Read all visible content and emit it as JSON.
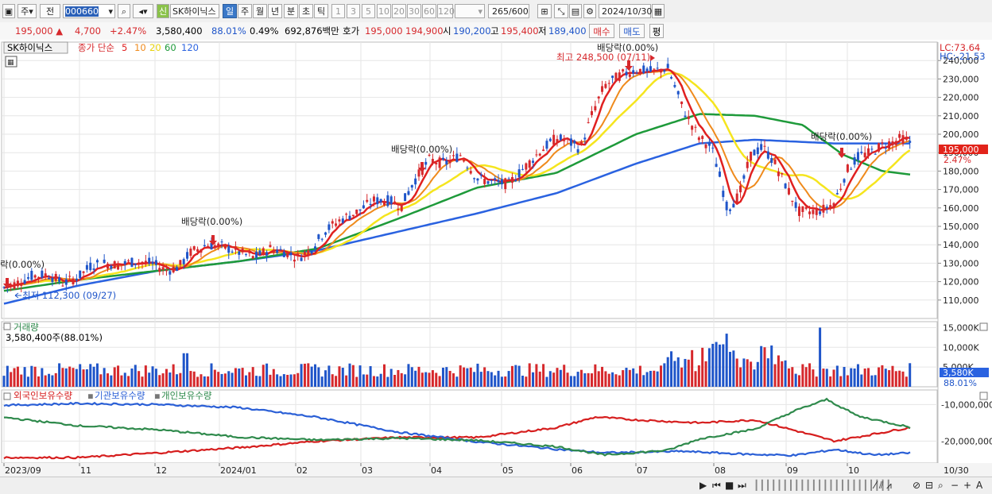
{
  "toolbar": {
    "market": "주",
    "prev_label": "전",
    "code": "000660",
    "name": "SK하이닉스",
    "credit_badge": "신",
    "periods": [
      "일",
      "주",
      "월",
      "년",
      "분",
      "초",
      "틱"
    ],
    "active_period": "일",
    "intervals": [
      "1",
      "3",
      "5",
      "10",
      "20",
      "30",
      "60",
      "120"
    ],
    "count": "265",
    "count_total": "/600",
    "date": "2024/10/30"
  },
  "quote": {
    "price": "195,000",
    "up_mark": "▲",
    "change": "4,700",
    "change_pct": "+2.47%",
    "volume": "3,580,400",
    "volume_ratio": "88.01%",
    "turnover": "0.49%",
    "amount": "692,876백만",
    "ask_label": "호가",
    "ask": "195,000",
    "bid": "194,900",
    "open_label": "시",
    "open": "190,200",
    "high_label": "고",
    "high": "195,400",
    "low_label": "저",
    "low": "189,400",
    "buy_label": "매수",
    "sell_label": "매도",
    "eval_label": "평"
  },
  "legend": {
    "name": "SK하이닉스",
    "ma_label": "종가 단순",
    "ma": [
      "5",
      "10",
      "20",
      "60",
      "120"
    ]
  },
  "annotations": {
    "lc": "LC:73.64",
    "hc": "HC:-21.53",
    "high_note": "최고 248,500 (07/11)",
    "low_note": "최저 112,300 (09/27)",
    "div_left": "락(0.00%)",
    "div1": "배당락(0.00%)",
    "div2": "배당락(0.00%)",
    "div3": "배당락(0.00%)",
    "div4": "배당락(0.00%)",
    "cur_price": "195,000",
    "cur_pct": "2.47%"
  },
  "volume_panel": {
    "title": "거래량",
    "value": "3,580,400주(88.01%)",
    "cur": "3,580K",
    "cur_pct": "88.01%"
  },
  "holding_panel": {
    "labels": [
      "외국인보유수량",
      "기관보유수량",
      "개인보유수량"
    ]
  },
  "chart_data": {
    "type": "line",
    "price": {
      "ylim": [
        100000,
        250000
      ],
      "yticks": [
        "110,000",
        "120,000",
        "130,000",
        "140,000",
        "150,000",
        "160,000",
        "170,000",
        "180,000",
        "190,000",
        "200,000",
        "210,000",
        "220,000",
        "230,000",
        "240,000"
      ],
      "close": [
        [
          0,
          116000
        ],
        [
          20,
          119000
        ],
        [
          40,
          123000
        ],
        [
          60,
          124000
        ],
        [
          80,
          119000
        ],
        [
          100,
          123000
        ],
        [
          115,
          129000
        ],
        [
          130,
          130000
        ],
        [
          150,
          129000
        ],
        [
          170,
          131000
        ],
        [
          190,
          130000
        ],
        [
          210,
          126000
        ],
        [
          225,
          128000
        ],
        [
          240,
          136000
        ],
        [
          260,
          140000
        ],
        [
          280,
          139000
        ],
        [
          300,
          136000
        ],
        [
          320,
          133000
        ],
        [
          340,
          138000
        ],
        [
          360,
          136000
        ],
        [
          375,
          133000
        ],
        [
          390,
          137000
        ],
        [
          410,
          148000
        ],
        [
          430,
          154000
        ],
        [
          450,
          158000
        ],
        [
          470,
          164000
        ],
        [
          490,
          164000
        ],
        [
          505,
          161000
        ],
        [
          520,
          174000
        ],
        [
          540,
          186000
        ],
        [
          560,
          184000
        ],
        [
          580,
          189000
        ],
        [
          600,
          176000
        ],
        [
          620,
          174000
        ],
        [
          640,
          173000
        ],
        [
          660,
          182000
        ],
        [
          680,
          191000
        ],
        [
          700,
          198000
        ],
        [
          715,
          196000
        ],
        [
          730,
          192000
        ],
        [
          745,
          211000
        ],
        [
          760,
          226000
        ],
        [
          780,
          232000
        ],
        [
          800,
          235000
        ],
        [
          820,
          234000
        ],
        [
          840,
          236000
        ],
        [
          860,
          213000
        ],
        [
          880,
          198000
        ],
        [
          895,
          193000
        ],
        [
          905,
          178000
        ],
        [
          915,
          159000
        ],
        [
          930,
          167000
        ],
        [
          945,
          189000
        ],
        [
          960,
          193000
        ],
        [
          975,
          184000
        ],
        [
          990,
          171000
        ],
        [
          1005,
          158000
        ],
        [
          1020,
          158000
        ],
        [
          1035,
          159000
        ],
        [
          1050,
          163000
        ],
        [
          1065,
          180000
        ],
        [
          1080,
          188000
        ],
        [
          1095,
          190000
        ],
        [
          1110,
          194000
        ],
        [
          1125,
          196000
        ],
        [
          1135,
          198000
        ],
        [
          1147,
          195000
        ]
      ],
      "ma120": [
        [
          5,
          108000
        ],
        [
          100,
          118000
        ],
        [
          200,
          126000
        ],
        [
          300,
          131000
        ],
        [
          400,
          137000
        ],
        [
          500,
          147000
        ],
        [
          600,
          157000
        ],
        [
          700,
          168000
        ],
        [
          800,
          184000
        ],
        [
          880,
          195000
        ],
        [
          950,
          197000
        ],
        [
          1050,
          195000
        ],
        [
          1147,
          195000
        ]
      ],
      "ma60": [
        [
          5,
          115000
        ],
        [
          100,
          121000
        ],
        [
          200,
          126000
        ],
        [
          300,
          131000
        ],
        [
          400,
          138000
        ],
        [
          500,
          154000
        ],
        [
          600,
          171000
        ],
        [
          700,
          179000
        ],
        [
          800,
          200000
        ],
        [
          880,
          211000
        ],
        [
          950,
          210000
        ],
        [
          1010,
          205000
        ],
        [
          1060,
          189000
        ],
        [
          1110,
          180000
        ],
        [
          1147,
          178000
        ]
      ]
    },
    "volume": {
      "ylim": [
        0,
        16500
      ],
      "yticks": [
        "5,000K",
        "10,000K",
        "15,000K"
      ]
    },
    "holding": {
      "ylim": [
        -26000,
        -6000
      ],
      "yticks": [
        "-10,000,000",
        "-20,000,000"
      ],
      "series": [
        {
          "name": "외국인보유수량",
          "color": "#d61e1e",
          "points": [
            [
              5,
              -24500
            ],
            [
              100,
              -24500
            ],
            [
              200,
              -23200
            ],
            [
              300,
              -21800
            ],
            [
              400,
              -20000
            ],
            [
              500,
              -19000
            ],
            [
              600,
              -19000
            ],
            [
              700,
              -16300
            ],
            [
              750,
              -13400
            ],
            [
              800,
              -14200
            ],
            [
              880,
              -15000
            ],
            [
              950,
              -14200
            ],
            [
              1050,
              -20000
            ],
            [
              1147,
              -16200
            ]
          ]
        },
        {
          "name": "기관보유수량",
          "color": "#2a5fd6",
          "points": [
            [
              5,
              -10200
            ],
            [
              100,
              -9700
            ],
            [
              200,
              -10000
            ],
            [
              300,
              -10800
            ],
            [
              400,
              -13500
            ],
            [
              500,
              -17500
            ],
            [
              600,
              -20200
            ],
            [
              700,
              -22200
            ],
            [
              760,
              -23200
            ],
            [
              860,
              -22800
            ],
            [
              940,
              -23600
            ],
            [
              1000,
              -23900
            ],
            [
              1050,
              -22300
            ],
            [
              1100,
              -23800
            ],
            [
              1147,
              -23200
            ]
          ]
        },
        {
          "name": "개인보유수량",
          "color": "#2f8a4c",
          "points": [
            [
              5,
              -13500
            ],
            [
              100,
              -15800
            ],
            [
              200,
              -16900
            ],
            [
              300,
              -18900
            ],
            [
              400,
              -19700
            ],
            [
              500,
              -19200
            ],
            [
              600,
              -19800
            ],
            [
              700,
              -21500
            ],
            [
              760,
              -23800
            ],
            [
              840,
              -22500
            ],
            [
              880,
              -19400
            ],
            [
              950,
              -16700
            ],
            [
              1000,
              -11700
            ],
            [
              1040,
              -8600
            ],
            [
              1080,
              -13200
            ],
            [
              1147,
              -16300
            ]
          ]
        }
      ]
    },
    "x_labels": [
      "2023/09",
      "11",
      "12",
      "2024/01",
      "02",
      "03",
      "04",
      "05",
      "06",
      "07",
      "08",
      "09",
      "10",
      "10/30"
    ]
  },
  "colors": {
    "up": "#d6282c",
    "down": "#1f55c9",
    "ma5": "#e02020",
    "ma10": "#ef8a1c",
    "ma20": "#f5e51e",
    "ma60": "#1e9a3a",
    "ma120": "#2a62e0"
  }
}
